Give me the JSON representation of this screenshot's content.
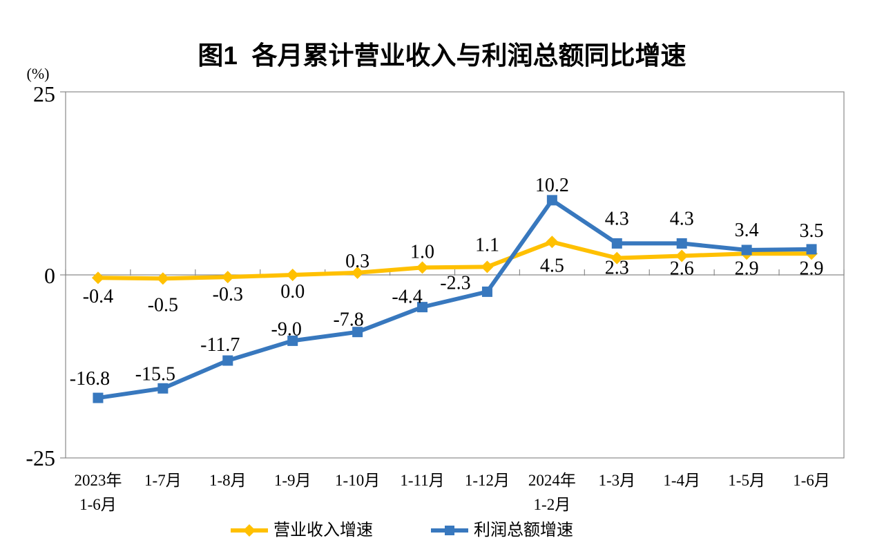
{
  "chart_data": {
    "type": "line",
    "title": "图1  各月累计营业收入与利润总额同比增速",
    "unit_label": "(%)",
    "categories": [
      [
        "2023年",
        "1-6月"
      ],
      [
        "1-7月"
      ],
      [
        "1-8月"
      ],
      [
        "1-9月"
      ],
      [
        "1-10月"
      ],
      [
        "1-11月"
      ],
      [
        "1-12月"
      ],
      [
        "2024年",
        "1-2月"
      ],
      [
        "1-3月"
      ],
      [
        "1-4月"
      ],
      [
        "1-5月"
      ],
      [
        "1-6月"
      ]
    ],
    "series": [
      {
        "name": "营业收入增速",
        "color": "#FFC000",
        "marker": "diamond",
        "values": [
          -0.4,
          -0.5,
          -0.3,
          0.0,
          0.3,
          1.0,
          1.1,
          4.5,
          2.3,
          2.6,
          2.9,
          2.9
        ]
      },
      {
        "name": "利润总额增速",
        "color": "#3878BE",
        "marker": "square",
        "values": [
          -16.8,
          -15.5,
          -11.7,
          -9.0,
          -7.8,
          -4.4,
          -2.3,
          10.2,
          4.3,
          4.3,
          3.4,
          3.5
        ]
      }
    ],
    "y_axis": {
      "min": -25,
      "max": 25,
      "ticks": [
        25,
        0,
        -25
      ]
    },
    "grid": "zero-line-only",
    "legend_position": "bottom",
    "axis_color": "#8a8a8a",
    "label_color": "#000000"
  }
}
